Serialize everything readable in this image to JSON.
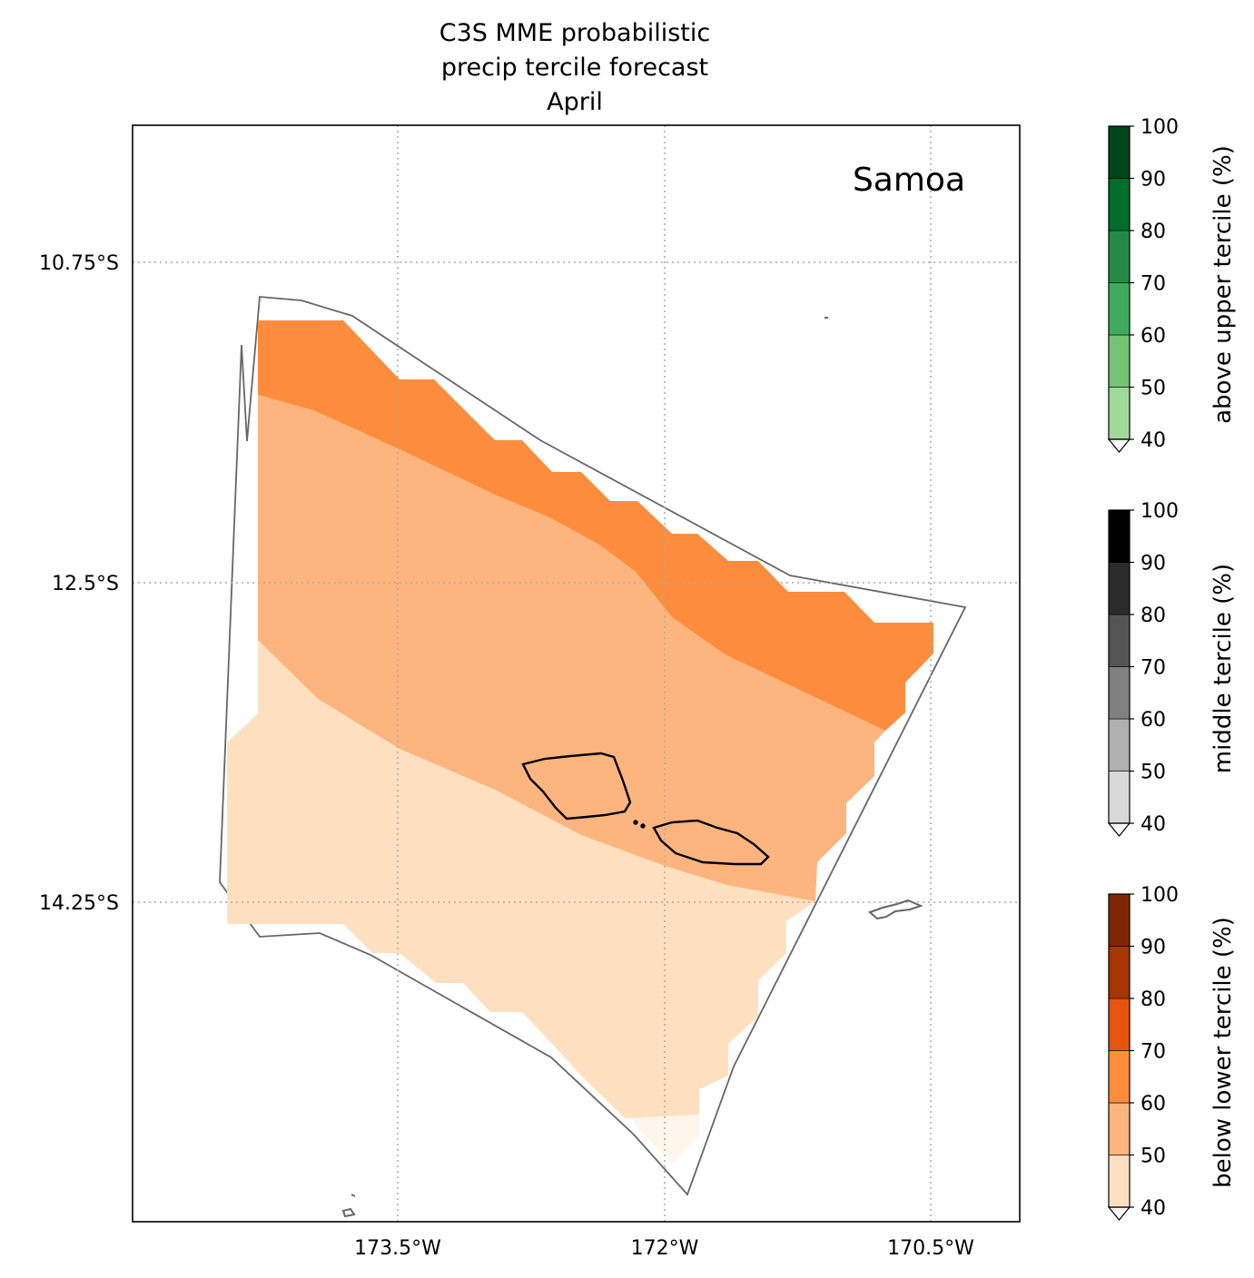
{
  "title": {
    "line1": "C3S MME probabilistic",
    "line2": "precip tercile forecast",
    "line3": "April"
  },
  "region_label": "Samoa",
  "map": {
    "lat_ticks": [
      "10.75°S",
      "12.5°S",
      "14.25°S"
    ],
    "lon_ticks": [
      "173.5°W",
      "172°W",
      "170.5°W"
    ],
    "gridlines": "dotted"
  },
  "colorbars": [
    {
      "label": "above upper tercile (%)",
      "ticks": [
        "40",
        "50",
        "60",
        "70",
        "80",
        "90",
        "100"
      ],
      "colors": [
        "#e5f5e0",
        "#a1d99b",
        "#74c476",
        "#41ab5d",
        "#238b45",
        "#006d2c",
        "#00441b"
      ],
      "extend": "min"
    },
    {
      "label": "middle tercile (%)",
      "ticks": [
        "40",
        "50",
        "60",
        "70",
        "80",
        "90",
        "100"
      ],
      "colors": [
        "#d9d9d9",
        "#b0b0b0",
        "#808080",
        "#555555",
        "#2b2b2b",
        "#000000"
      ],
      "extend": "min"
    },
    {
      "label": "below lower tercile (%)",
      "ticks": [
        "40",
        "50",
        "60",
        "70",
        "80",
        "90",
        "100"
      ],
      "colors": [
        "#fee0c0",
        "#fdb57f",
        "#fd8d3c",
        "#e6550d",
        "#a63603",
        "#7f2704"
      ],
      "extend": "min"
    }
  ],
  "forecast_bands": [
    {
      "category": "below",
      "range": "60-70",
      "color": "#fd8d3c"
    },
    {
      "category": "below",
      "range": "50-60",
      "color": "#fdb57f"
    },
    {
      "category": "below",
      "range": "40-50",
      "color": "#fee0c0"
    },
    {
      "category": "below",
      "range": "<40",
      "color": "#fff5eb"
    }
  ]
}
